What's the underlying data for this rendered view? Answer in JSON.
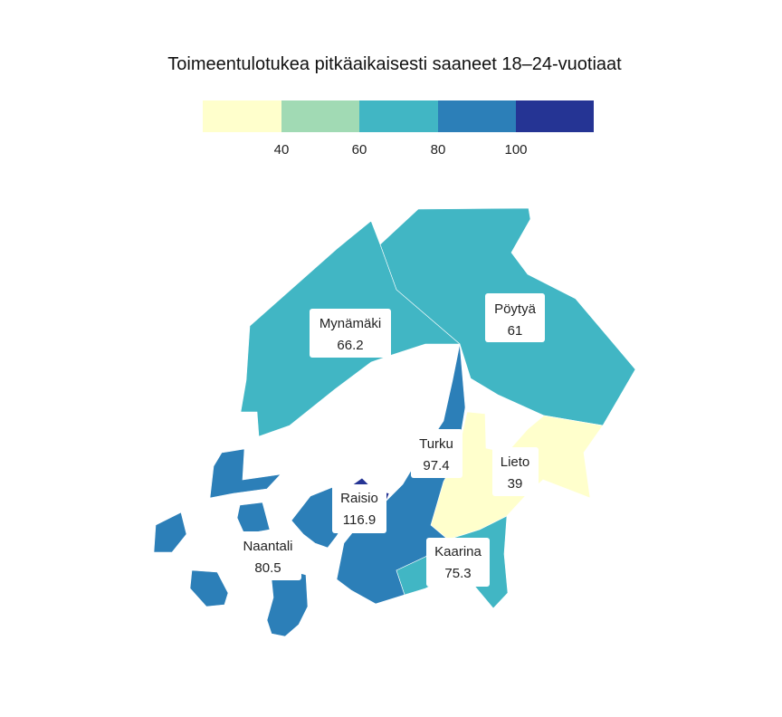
{
  "title": "Toimeentulotukea pitkäaikaisesti saaneet 18–24-vuotiaat",
  "legend": {
    "ticks": [
      "40",
      "60",
      "80",
      "100"
    ],
    "bins": [
      {
        "color": "#ffffcc"
      },
      {
        "color": "#a1dab4"
      },
      {
        "color": "#41b6c4"
      },
      {
        "color": "#2c7fb8"
      },
      {
        "color": "#253494"
      }
    ]
  },
  "regions": [
    {
      "name": "Mynämäki",
      "value": "66.2",
      "color": "#41b6c4"
    },
    {
      "name": "Pöytyä",
      "value": "61",
      "color": "#41b6c4"
    },
    {
      "name": "Turku",
      "value": "97.4",
      "color": "#2c7fb8"
    },
    {
      "name": "Lieto",
      "value": "39",
      "color": "#ffffcc"
    },
    {
      "name": "Raisio",
      "value": "116.9",
      "color": "#253494"
    },
    {
      "name": "Naantali",
      "value": "80.5",
      "color": "#2c7fb8"
    },
    {
      "name": "Kaarina",
      "value": "75.3",
      "color": "#41b6c4"
    }
  ]
}
